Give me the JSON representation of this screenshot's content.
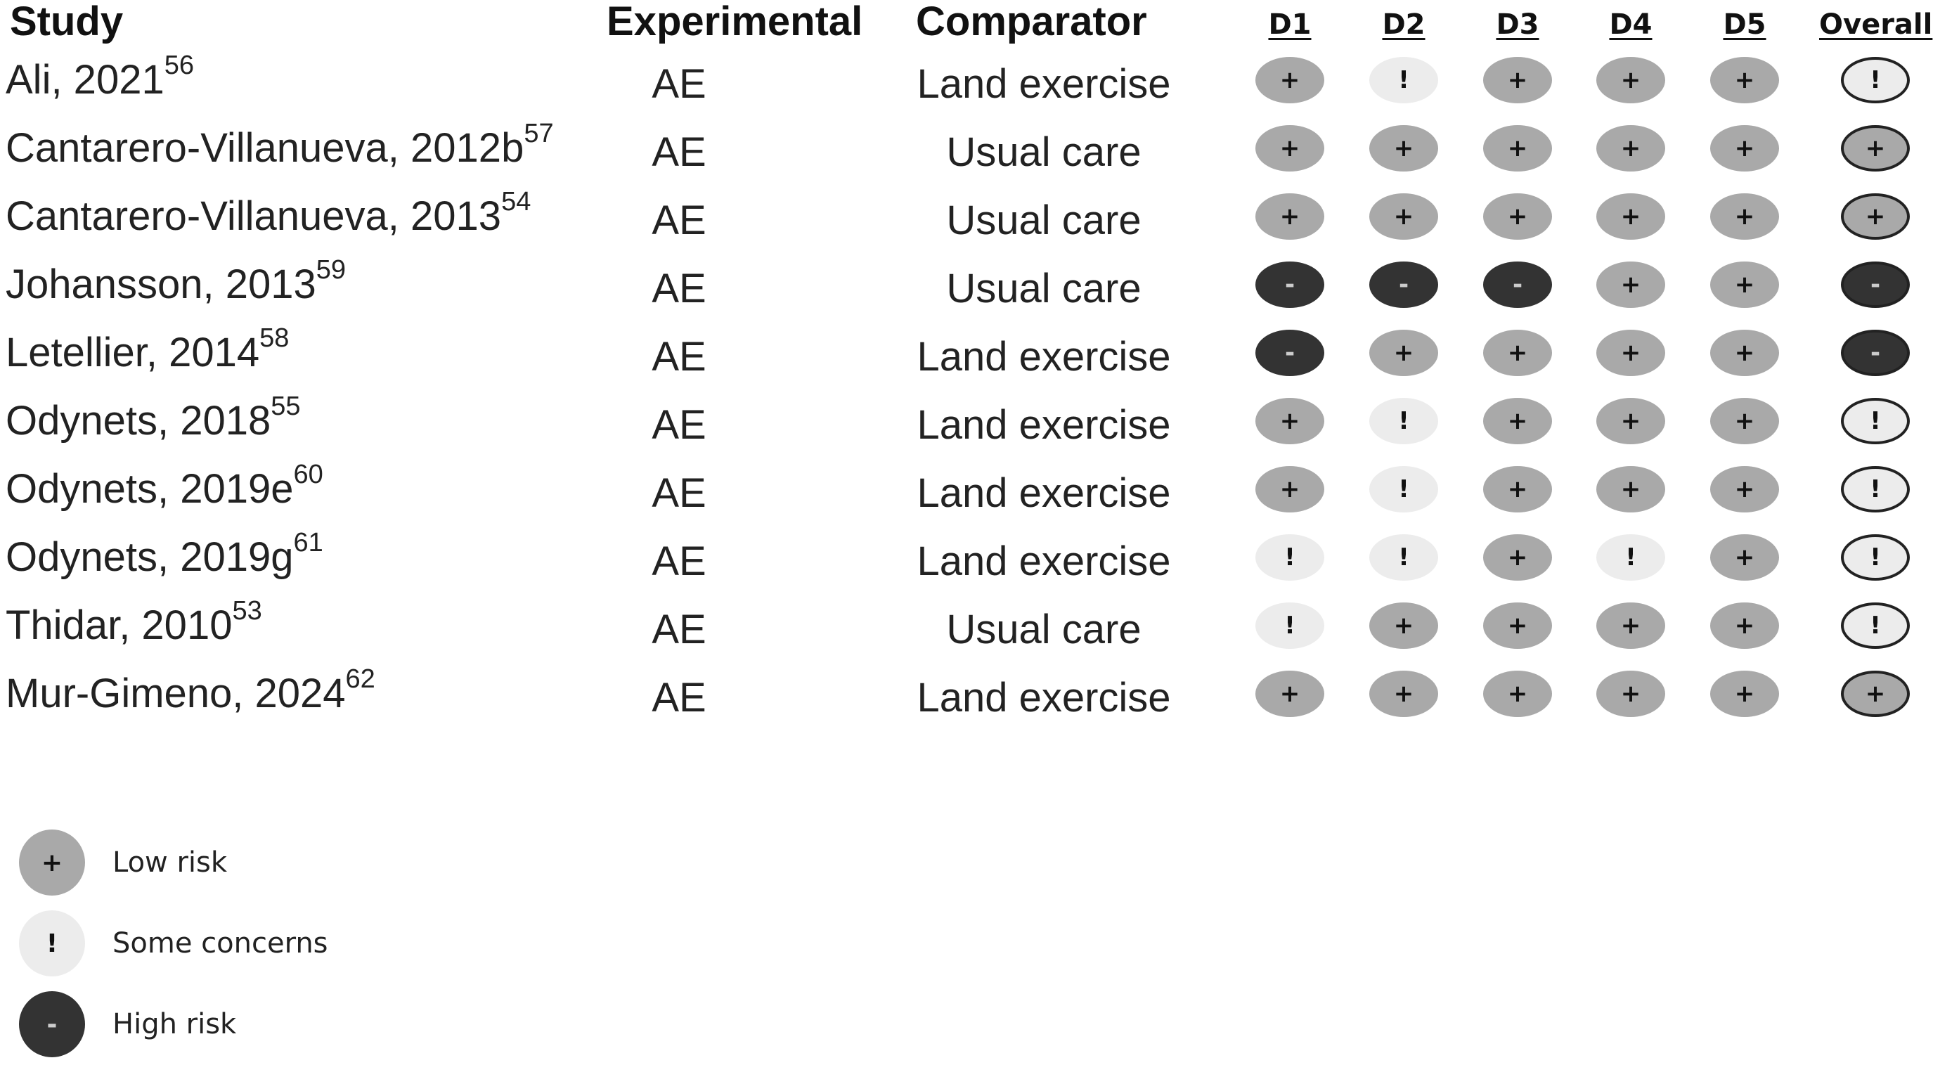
{
  "headers": {
    "study": "Study",
    "experimental": "Experimental",
    "comparator": "Comparator",
    "domains": [
      "D1",
      "D2",
      "D3",
      "D4",
      "D5",
      "Overall"
    ]
  },
  "rows": [
    {
      "study": "Ali, 2021",
      "ref": "56",
      "experimental": "AE",
      "comparator": "Land exercise",
      "judgements": [
        "low",
        "some",
        "low",
        "low",
        "low",
        "some"
      ]
    },
    {
      "study": "Cantarero-Villanueva, 2012b",
      "ref": "57",
      "experimental": "AE",
      "comparator": "Usual care",
      "judgements": [
        "low",
        "low",
        "low",
        "low",
        "low",
        "low"
      ]
    },
    {
      "study": "Cantarero-Villanueva, 2013",
      "ref": "54",
      "experimental": "AE",
      "comparator": "Usual care",
      "judgements": [
        "low",
        "low",
        "low",
        "low",
        "low",
        "low"
      ]
    },
    {
      "study": "Johansson, 2013",
      "ref": "59",
      "experimental": "AE",
      "comparator": "Usual care",
      "judgements": [
        "high",
        "high",
        "high",
        "low",
        "low",
        "high"
      ]
    },
    {
      "study": "Letellier, 2014",
      "ref": "58",
      "experimental": "AE",
      "comparator": "Land exercise",
      "judgements": [
        "high",
        "low",
        "low",
        "low",
        "low",
        "high"
      ]
    },
    {
      "study": "Odynets, 2018",
      "ref": "55",
      "experimental": "AE",
      "comparator": "Land exercise",
      "judgements": [
        "low",
        "some",
        "low",
        "low",
        "low",
        "some"
      ]
    },
    {
      "study": "Odynets, 2019e",
      "ref": "60",
      "experimental": "AE",
      "comparator": "Land exercise",
      "judgements": [
        "low",
        "some",
        "low",
        "low",
        "low",
        "some"
      ]
    },
    {
      "study": "Odynets, 2019g",
      "ref": "61",
      "experimental": "AE",
      "comparator": "Land exercise",
      "judgements": [
        "some",
        "some",
        "low",
        "some",
        "low",
        "some"
      ]
    },
    {
      "study": "Thidar, 2010",
      "ref": "53",
      "experimental": "AE",
      "comparator": "Usual care",
      "judgements": [
        "some",
        "low",
        "low",
        "low",
        "low",
        "some"
      ]
    },
    {
      "study": "Mur-Gimeno, 2024",
      "ref": "62",
      "experimental": "AE",
      "comparator": "Land exercise",
      "judgements": [
        "low",
        "low",
        "low",
        "low",
        "low",
        "low"
      ]
    }
  ],
  "symbols": {
    "low": "+",
    "some": "!",
    "high": "-"
  },
  "colors": {
    "low": "#a9a9a9",
    "some": "#ececec",
    "high": "#333333"
  },
  "legend": [
    {
      "key": "low",
      "symbol": "+",
      "label": "Low risk"
    },
    {
      "key": "some",
      "symbol": "!",
      "label": "Some concerns"
    },
    {
      "key": "high",
      "symbol": "-",
      "label": "High risk"
    }
  ]
}
